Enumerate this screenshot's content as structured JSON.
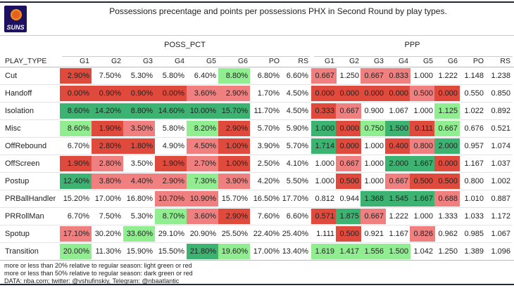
{
  "header": {
    "title": "Possessions precentage and points per possessions PHX in Second Round by play types.",
    "logo_text": "SUNS"
  },
  "colors": {
    "light_red": "#f08080",
    "dark_red": "#e04a3c",
    "light_green": "#90ee90",
    "dark_green": "#3cb371"
  },
  "chart_data": {
    "type": "table",
    "row_header": "PLAY_TYPE",
    "groups": [
      "POSS_PCT",
      "PPP"
    ],
    "columns": [
      "G1",
      "G2",
      "G3",
      "G4",
      "G5",
      "G6",
      "PO",
      "RS"
    ],
    "rows": [
      {
        "play_type": "Cut",
        "poss_pct": [
          "2.90%",
          "7.50%",
          "5.30%",
          "5.80%",
          "6.40%",
          "8.80%",
          "6.80%",
          "6.60%"
        ],
        "poss_color": [
          "dr",
          "",
          "",
          "",
          "",
          "lg"
        ],
        "ppp": [
          "0.667",
          "1.250",
          "0.667",
          "0.833",
          "1.000",
          "1.222",
          "1.148",
          "1.238"
        ],
        "ppp_color": [
          "lr",
          "",
          "lr",
          "lr",
          "",
          ""
        ]
      },
      {
        "play_type": "Handoff",
        "poss_pct": [
          "0.00%",
          "0.90%",
          "0.90%",
          "0.00%",
          "3.60%",
          "2.90%",
          "1.70%",
          "4.50%"
        ],
        "poss_color": [
          "dr",
          "dr",
          "dr",
          "dr",
          "lr",
          "lr"
        ],
        "ppp": [
          "0.000",
          "0.000",
          "0.000",
          "0.000",
          "0.500",
          "0.000",
          "0.550",
          "0.850"
        ],
        "ppp_color": [
          "dr",
          "dr",
          "dr",
          "dr",
          "lr",
          "dr"
        ]
      },
      {
        "play_type": "Isolation",
        "poss_pct": [
          "8.60%",
          "14.20%",
          "8.80%",
          "14.60%",
          "10.00%",
          "15.70%",
          "11.70%",
          "4.50%"
        ],
        "poss_color": [
          "dg",
          "dg",
          "dg",
          "dg",
          "dg",
          "dg"
        ],
        "ppp": [
          "0.333",
          "0.667",
          "0.900",
          "1.067",
          "1.000",
          "1.125",
          "1.022",
          "0.892"
        ],
        "ppp_color": [
          "dr",
          "lr",
          "",
          "",
          "",
          "lg"
        ]
      },
      {
        "play_type": "Misc",
        "poss_pct": [
          "8.60%",
          "1.90%",
          "3.50%",
          "5.80%",
          "8.20%",
          "2.90%",
          "5.70%",
          "5.90%"
        ],
        "poss_color": [
          "lg",
          "dr",
          "lr",
          "",
          "lg",
          "dr"
        ],
        "ppp": [
          "1.000",
          "0.000",
          "0.750",
          "1.500",
          "0.111",
          "0.667",
          "0.676",
          "0.521"
        ],
        "ppp_color": [
          "dg",
          "dr",
          "lg",
          "dg",
          "dr",
          "lg"
        ]
      },
      {
        "play_type": "OffRebound",
        "poss_pct": [
          "6.70%",
          "2.80%",
          "1.80%",
          "4.90%",
          "4.50%",
          "1.00%",
          "3.90%",
          "5.70%"
        ],
        "poss_color": [
          "",
          "dr",
          "dr",
          "",
          "lr",
          "dr"
        ],
        "ppp": [
          "1.714",
          "0.000",
          "1.000",
          "0.400",
          "0.800",
          "2.000",
          "0.957",
          "1.074"
        ],
        "ppp_color": [
          "dg",
          "dr",
          "",
          "dr",
          "lr",
          "dg"
        ]
      },
      {
        "play_type": "OffScreen",
        "poss_pct": [
          "1.90%",
          "2.80%",
          "3.50%",
          "1.90%",
          "2.70%",
          "1.00%",
          "2.50%",
          "4.10%"
        ],
        "poss_color": [
          "dr",
          "lr",
          "",
          "dr",
          "lr",
          "dr"
        ],
        "ppp": [
          "1.000",
          "0.667",
          "1.000",
          "2.000",
          "1.667",
          "0.000",
          "1.167",
          "1.037"
        ],
        "ppp_color": [
          "",
          "lr",
          "",
          "dg",
          "dg",
          "dr"
        ]
      },
      {
        "play_type": "Postup",
        "poss_pct": [
          "12.40%",
          "3.80%",
          "4.40%",
          "2.90%",
          "7.30%",
          "3.90%",
          "4.20%",
          "5.50%"
        ],
        "poss_color": [
          "dg",
          "lr",
          "lr",
          "lr",
          "lg",
          "lr"
        ],
        "ppp": [
          "1.000",
          "0.500",
          "1.000",
          "0.667",
          "0.500",
          "0.500",
          "0.800",
          "1.002"
        ],
        "ppp_color": [
          "",
          "dr",
          "",
          "lr",
          "dr",
          "dr"
        ]
      },
      {
        "play_type": "PRBallHandler",
        "poss_pct": [
          "15.20%",
          "17.00%",
          "16.80%",
          "10.70%",
          "10.90%",
          "15.70%",
          "16.50%",
          "17.70%"
        ],
        "poss_color": [
          "",
          "",
          "",
          "lr",
          "lr",
          ""
        ],
        "ppp": [
          "0.812",
          "0.944",
          "1.368",
          "1.545",
          "1.667",
          "0.688",
          "1.010",
          "0.887"
        ],
        "ppp_color": [
          "",
          "",
          "dg",
          "dg",
          "dg",
          "lr"
        ]
      },
      {
        "play_type": "PRRollMan",
        "poss_pct": [
          "6.70%",
          "7.50%",
          "5.30%",
          "8.70%",
          "3.60%",
          "2.90%",
          "7.60%",
          "6.60%"
        ],
        "poss_color": [
          "",
          "",
          "",
          "lg",
          "lr",
          "dr"
        ],
        "ppp": [
          "0.571",
          "1.875",
          "0.667",
          "1.222",
          "1.000",
          "1.333",
          "1.033",
          "1.172"
        ],
        "ppp_color": [
          "dr",
          "dg",
          "lr",
          "",
          "",
          ""
        ]
      },
      {
        "play_type": "Spotup",
        "poss_pct": [
          "17.10%",
          "30.20%",
          "33.60%",
          "29.10%",
          "20.90%",
          "25.50%",
          "22.40%",
          "25.40%"
        ],
        "poss_color": [
          "lr",
          "",
          "lg",
          "",
          "",
          ""
        ],
        "ppp": [
          "1.111",
          "0.500",
          "0.921",
          "1.167",
          "0.826",
          "0.962",
          "0.985",
          "1.067"
        ],
        "ppp_color": [
          "",
          "dr",
          "",
          "",
          "lr",
          ""
        ]
      },
      {
        "play_type": "Transition",
        "poss_pct": [
          "20.00%",
          "11.30%",
          "15.90%",
          "15.50%",
          "21.80%",
          "19.60%",
          "17.00%",
          "13.40%"
        ],
        "poss_color": [
          "lg",
          "",
          "",
          "",
          "dg",
          "lg"
        ],
        "ppp": [
          "1.619",
          "1.417",
          "1.556",
          "1.500",
          "1.042",
          "1.250",
          "1.389",
          "1.096"
        ],
        "ppp_color": [
          "lg",
          "lg",
          "lg",
          "lg",
          "",
          ""
        ]
      }
    ]
  },
  "footer": {
    "note1": "more or less than 20% relative to regular season: light green or red",
    "note2": "more or less than 50% relative to regular season: dark green or red",
    "source": "DATA: nba.com; twitter: @vshufinskiy, Telegram: @nbaatlantic"
  }
}
